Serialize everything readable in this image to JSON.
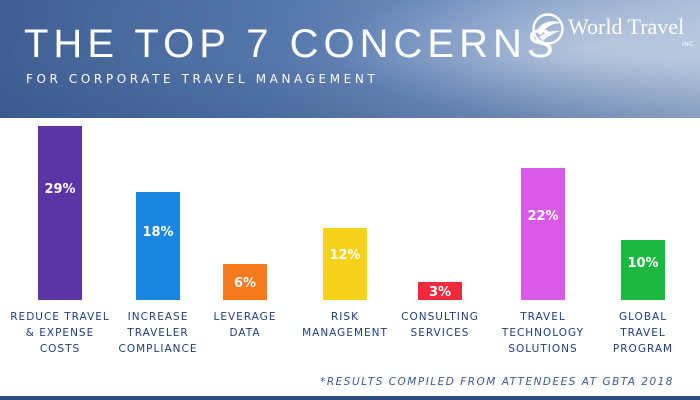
{
  "header": {
    "title": "THE TOP 7 CONCERNS",
    "subtitle": "FOR CORPORATE TRAVEL MANAGEMENT"
  },
  "logo": {
    "name": "World Travel",
    "suffix": "INC."
  },
  "chart_data": {
    "type": "bar",
    "title": "THE TOP 7 CONCERNS",
    "subtitle": "FOR CORPORATE TRAVEL MANAGEMENT",
    "unit": "%",
    "categories": [
      [
        "REDUCE TRAVEL",
        "& EXPENSE",
        "COSTS"
      ],
      [
        "INCREASE",
        "TRAVELER",
        "COMPLIANCE"
      ],
      [
        "LEVERAGE",
        "DATA"
      ],
      [
        "RISK",
        "MANAGEMENT"
      ],
      [
        "CONSULTING",
        "SERVICES"
      ],
      [
        "TRAVEL",
        "TECHNOLOGY",
        "SOLUTIONS"
      ],
      [
        "GLOBAL",
        "TRAVEL",
        "PROGRAM"
      ]
    ],
    "values": [
      29,
      18,
      6,
      12,
      3,
      22,
      10
    ],
    "data_labels": [
      "29%",
      "18%",
      "6%",
      "12%",
      "3%",
      "22%",
      "10%"
    ],
    "colors": [
      "#5b35a6",
      "#1a86e0",
      "#f77a1e",
      "#f6d21a",
      "#ef2a3c",
      "#d95ae6",
      "#1db83f"
    ],
    "label_color": "#1f3f78",
    "ylim": [
      0,
      29
    ],
    "grid": false,
    "legend": "none"
  },
  "footnote": "*RESULTS COMPILED FROM ATTENDEES AT GBTA 2018"
}
